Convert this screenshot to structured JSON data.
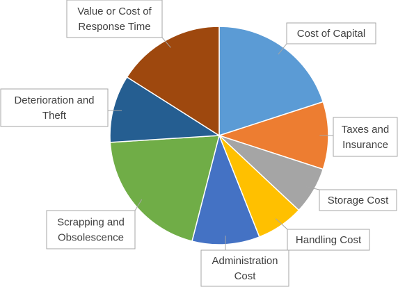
{
  "chart_data": {
    "type": "pie",
    "title": "",
    "legend": "none",
    "slices": [
      {
        "label": "Cost of Capital",
        "value": 20,
        "color": "#5b9bd5"
      },
      {
        "label": "Taxes and Insurance",
        "value": 10,
        "color": "#ed7d31"
      },
      {
        "label": "Storage Cost",
        "value": 7,
        "color": "#a5a5a5"
      },
      {
        "label": "Handling Cost",
        "value": 7,
        "color": "#ffc000"
      },
      {
        "label": "Administration Cost",
        "value": 10,
        "color": "#4472c4"
      },
      {
        "label": "Scrapping and Obsolescence",
        "value": 20,
        "color": "#70ad47"
      },
      {
        "label": "Deterioration and Theft",
        "value": 10,
        "color": "#255e91"
      },
      {
        "label": "Value or Cost of Response Time",
        "value": 16,
        "color": "#9e480e"
      }
    ]
  }
}
